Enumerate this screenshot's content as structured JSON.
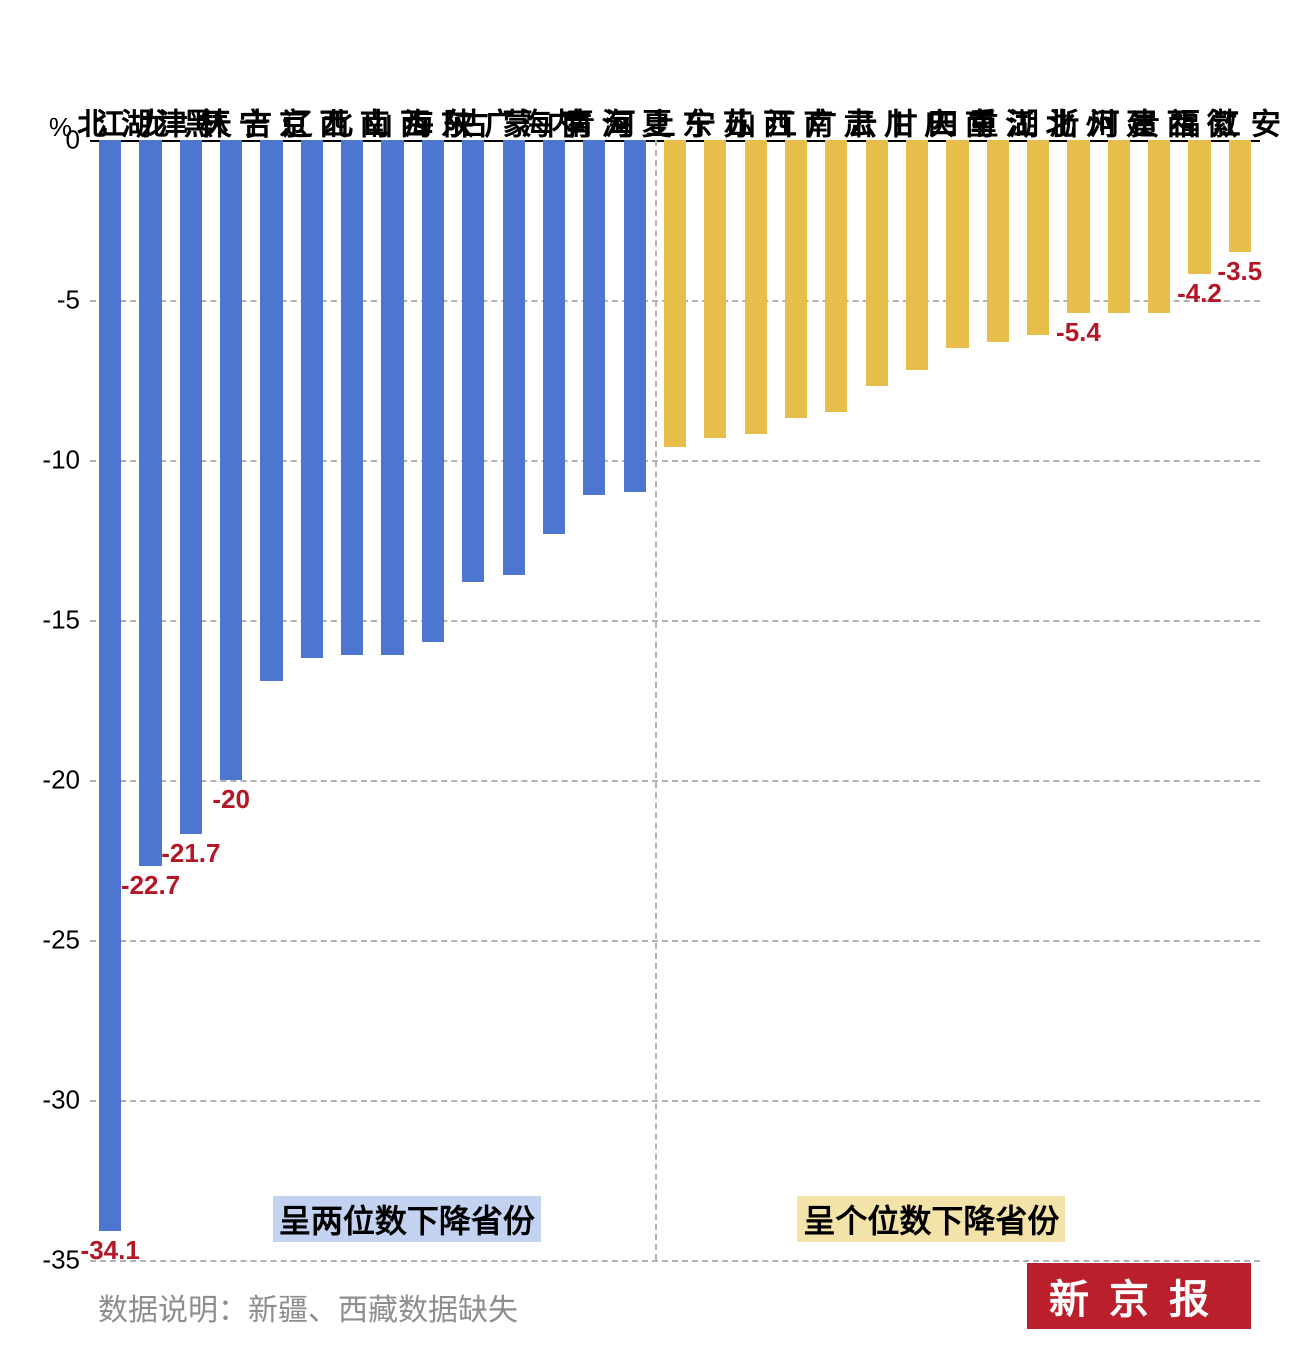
{
  "chart": {
    "type": "bar",
    "y_unit": "%",
    "ylim": [
      -35,
      0
    ],
    "yticks": [
      0,
      -5,
      -10,
      -15,
      -20,
      -25,
      -30,
      -35
    ],
    "grid_color": "#b3b3b3",
    "axis_color": "#000000",
    "background_color": "#ffffff",
    "bar_width_ratio": 0.55,
    "divider_after_index": 13,
    "colors": {
      "group1": "#4d76d1",
      "group2": "#e8be4b",
      "value_label": "#b41826"
    },
    "categories": [
      {
        "name": "湖北",
        "value": -34.1,
        "group": 1,
        "show_value": true,
        "value_pos": "below"
      },
      {
        "name": "黑龙江",
        "value": -22.7,
        "group": 1,
        "show_value": true,
        "value_pos": "below"
      },
      {
        "name": "天津",
        "value": -21.7,
        "group": 1,
        "show_value": true,
        "value_pos": "below"
      },
      {
        "name": "吉林",
        "value": -20.0,
        "group": 1,
        "show_value": true,
        "value_pos": "below",
        "value_text": "-20"
      },
      {
        "name": "辽宁",
        "value": -16.9,
        "group": 1,
        "show_value": false
      },
      {
        "name": "北京",
        "value": -16.2,
        "group": 1,
        "show_value": false
      },
      {
        "name": "山西",
        "value": -16.1,
        "group": 1,
        "show_value": false
      },
      {
        "name": "海南",
        "value": -16.1,
        "group": 1,
        "show_value": false
      },
      {
        "name": "陕西",
        "value": -15.7,
        "group": 1,
        "show_value": false
      },
      {
        "name": "广东",
        "value": -13.8,
        "group": 1,
        "show_value": false
      },
      {
        "name": "内蒙古",
        "value": -13.6,
        "group": 1,
        "show_value": false
      },
      {
        "name": "青海",
        "value": -12.3,
        "group": 1,
        "show_value": false
      },
      {
        "name": "河南",
        "value": -11.1,
        "group": 1,
        "show_value": false
      },
      {
        "name": "上海",
        "value": -11.0,
        "group": 1,
        "show_value": false
      },
      {
        "name": "宁夏",
        "value": -9.6,
        "group": 2,
        "show_value": false
      },
      {
        "name": "山东",
        "value": -9.3,
        "group": 2,
        "show_value": false
      },
      {
        "name": "江苏",
        "value": -9.2,
        "group": 2,
        "show_value": false
      },
      {
        "name": "广西",
        "value": -8.7,
        "group": 2,
        "show_value": false
      },
      {
        "name": "云南",
        "value": -8.5,
        "group": 2,
        "show_value": false
      },
      {
        "name": "甘肃",
        "value": -7.7,
        "group": 2,
        "show_value": false
      },
      {
        "name": "四川",
        "value": -7.2,
        "group": 2,
        "show_value": false
      },
      {
        "name": "重庆",
        "value": -6.5,
        "group": 2,
        "show_value": false
      },
      {
        "name": "湖南",
        "value": -6.3,
        "group": 2,
        "show_value": false
      },
      {
        "name": "浙江",
        "value": -6.1,
        "group": 2,
        "show_value": false
      },
      {
        "name": "河北",
        "value": -5.4,
        "group": 2,
        "show_value": true,
        "value_pos": "below"
      },
      {
        "name": "贵州",
        "value": -5.4,
        "group": 2,
        "show_value": false
      },
      {
        "name": "福建",
        "value": -5.4,
        "group": 2,
        "show_value": false
      },
      {
        "name": "江西",
        "value": -4.2,
        "group": 2,
        "show_value": true,
        "value_pos": "below"
      },
      {
        "name": "安徽",
        "value": -3.5,
        "group": 2,
        "show_value": true,
        "value_pos": "below"
      }
    ],
    "annotations": [
      {
        "text": "呈两位数下降省份",
        "group": 1,
        "x_center_index": 8,
        "y_value": -33
      },
      {
        "text": "呈个位数下降省份",
        "group": 2,
        "x_center_index": 21,
        "y_value": -33
      }
    ]
  },
  "caption": "数据说明：新疆、西藏数据缺失",
  "logo_text": "新京报"
}
